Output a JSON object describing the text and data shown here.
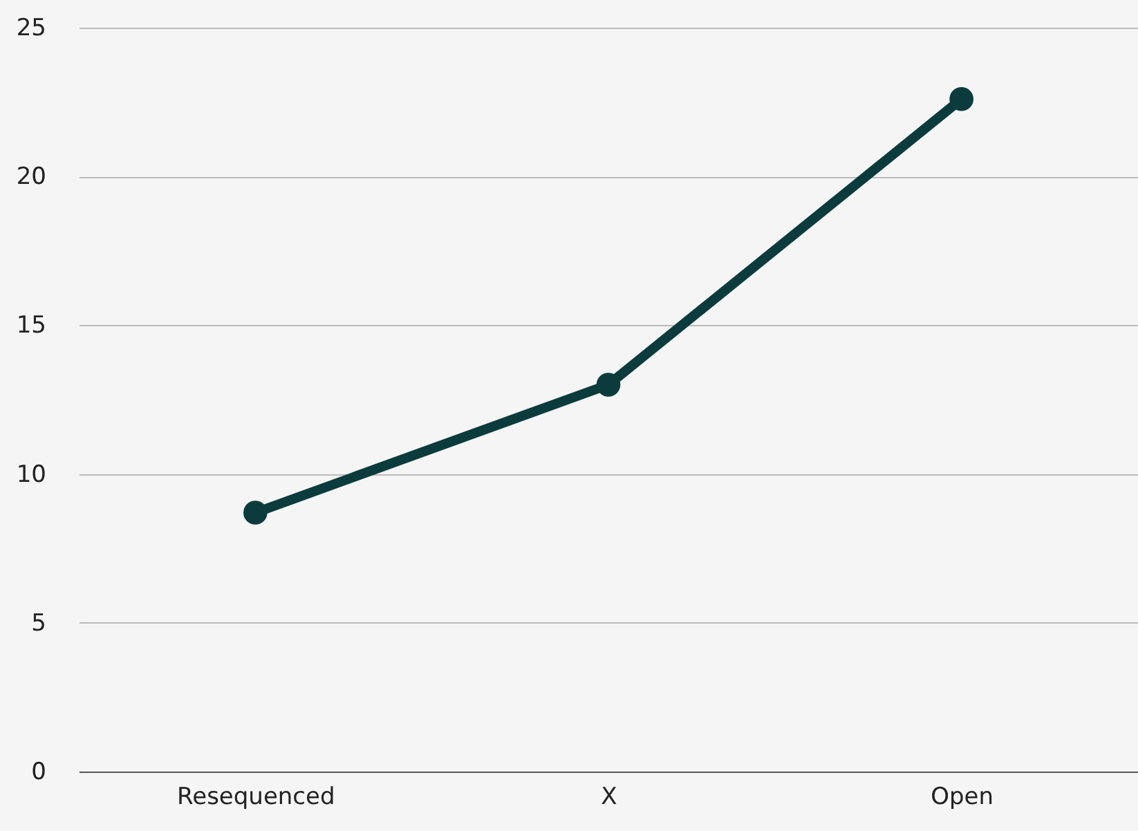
{
  "chart_data": {
    "type": "line",
    "categories": [
      "Resequenced",
      "X",
      "Open"
    ],
    "series": [
      {
        "color": "#0b3b3d",
        "values": [
          8.7,
          13.0,
          22.6
        ]
      }
    ],
    "ylim": [
      0,
      25
    ],
    "yticks": [
      0,
      5,
      10,
      15,
      20,
      25
    ],
    "grid": "y",
    "marker": "circle",
    "line_style": "solid"
  }
}
